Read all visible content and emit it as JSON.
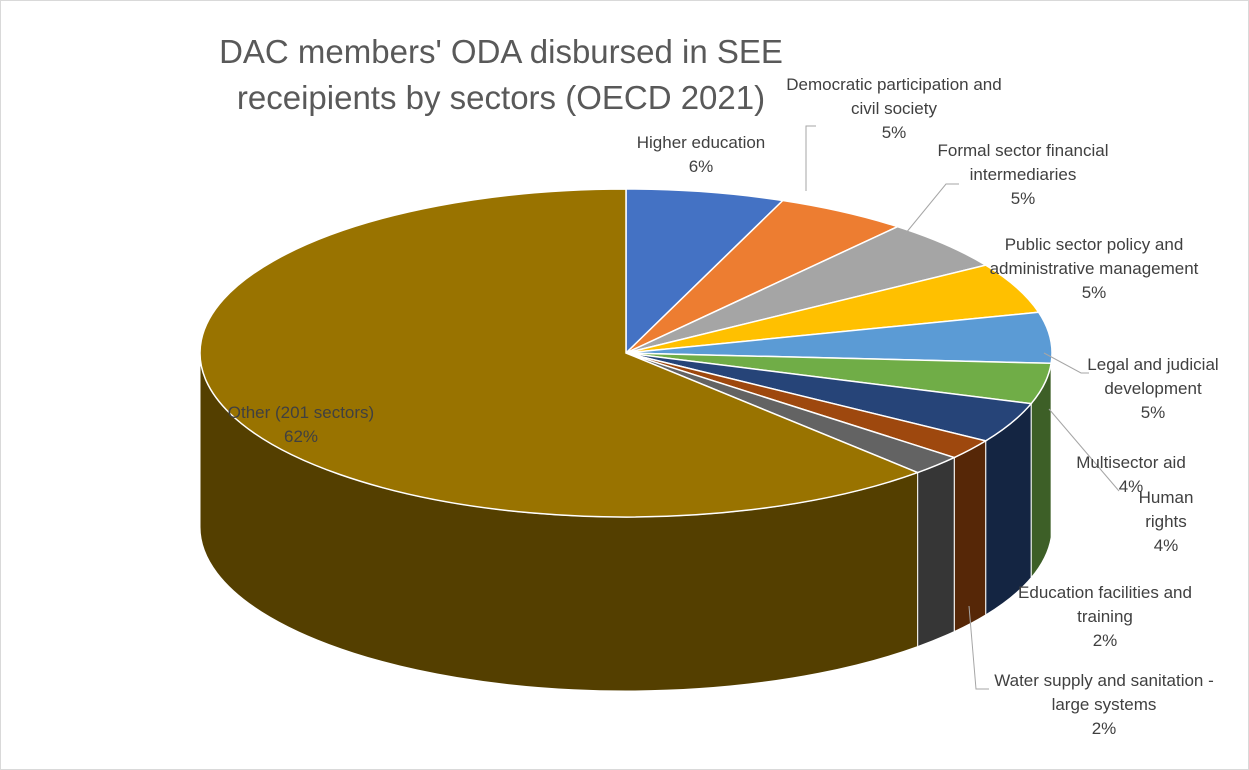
{
  "chart_data": {
    "type": "pie3d",
    "title": "DAC members' ODA disbursed in SEE receipients by sectors (OECD 2021)",
    "categories": [
      "Higher education",
      "Democratic participation and civil society",
      "Formal sector financial intermediaries",
      "Public sector policy and administrative management",
      "Legal and judicial development",
      "Multisector aid",
      "Human rights",
      "Education facilities and training",
      "Water supply and sanitation - large systems",
      "Other (201 sectors)"
    ],
    "values": [
      6,
      5,
      5,
      5,
      5,
      4,
      4,
      2,
      2,
      62
    ],
    "value_labels": [
      "6%",
      "5%",
      "5%",
      "5%",
      "5%",
      "4%",
      "4%",
      "2%",
      "2%",
      "62%"
    ],
    "colors": [
      "#4472c4",
      "#ed7d31",
      "#a5a5a5",
      "#ffc000",
      "#5b9bd5",
      "#70ad47",
      "#264478",
      "#9e480e",
      "#636363",
      "#997300"
    ]
  }
}
